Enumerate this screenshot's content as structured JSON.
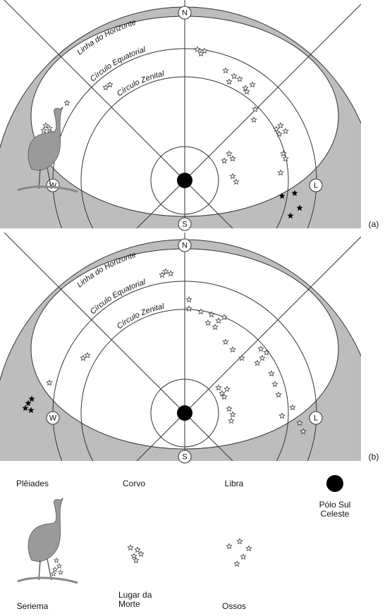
{
  "panels": [
    {
      "horizon": "Linha do Horizonte",
      "equatorial": "Círculo Equatorial",
      "zenital": "Círculo Zenital",
      "north": "N",
      "south": "S",
      "west": "W",
      "east": "L",
      "tag": "(a)"
    },
    {
      "horizon": "Linha do Horizonte",
      "equatorial": "Círculo Equatorial",
      "zenital": "Círculo Zenital",
      "north": "N",
      "south": "S",
      "west": "W",
      "east": "L",
      "tag": "(b)"
    }
  ],
  "legend": {
    "pleiades": "Plêiades",
    "corvo": "Corvo",
    "libra": "Libra",
    "polo": [
      "Pólo Sul",
      "Celeste"
    ],
    "seriema": "Seriema",
    "lugar": [
      "Lugar da",
      "Morte"
    ],
    "ossos": "Ossos"
  }
}
